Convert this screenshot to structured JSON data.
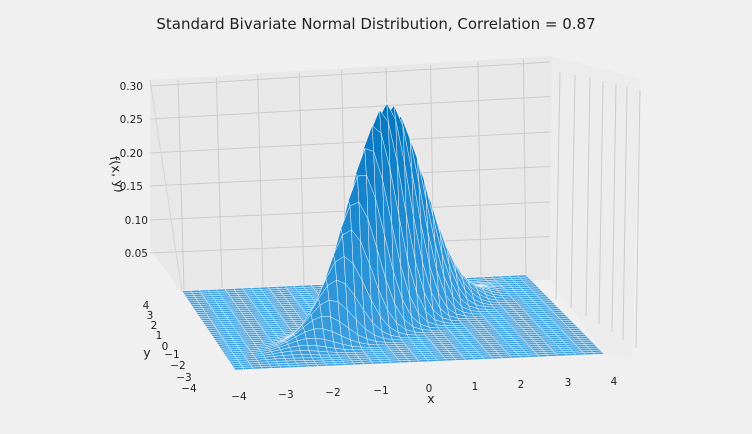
{
  "chart_data": {
    "type": "surface",
    "title": "Standard Bivariate Normal Distribution, Correlation = 0.87",
    "xlabel": "x",
    "ylabel": "y",
    "zlabel": "f(x, y)",
    "correlation": 0.87,
    "x_ticks": [
      "−4",
      "−3",
      "−2",
      "−1",
      "0",
      "1",
      "2",
      "3",
      "4"
    ],
    "y_ticks": [
      "4",
      "3",
      "2",
      "1",
      "0",
      "−1",
      "−2",
      "−3",
      "−4"
    ],
    "z_ticks": [
      "0.30",
      "0.25",
      "0.20",
      "0.15",
      "0.10",
      "0.05"
    ],
    "xlim": [
      -4,
      4
    ],
    "ylim": [
      -4,
      4
    ],
    "zlim": [
      0,
      0.32
    ],
    "peak": {
      "x": 0,
      "y": 0,
      "z": 0.323
    },
    "colors": {
      "background": "#f0f0f0",
      "pane": "#e8e8e8",
      "grid": "#cbcbcb",
      "surface": "#008fd5",
      "mesh": "#ffffff"
    }
  }
}
